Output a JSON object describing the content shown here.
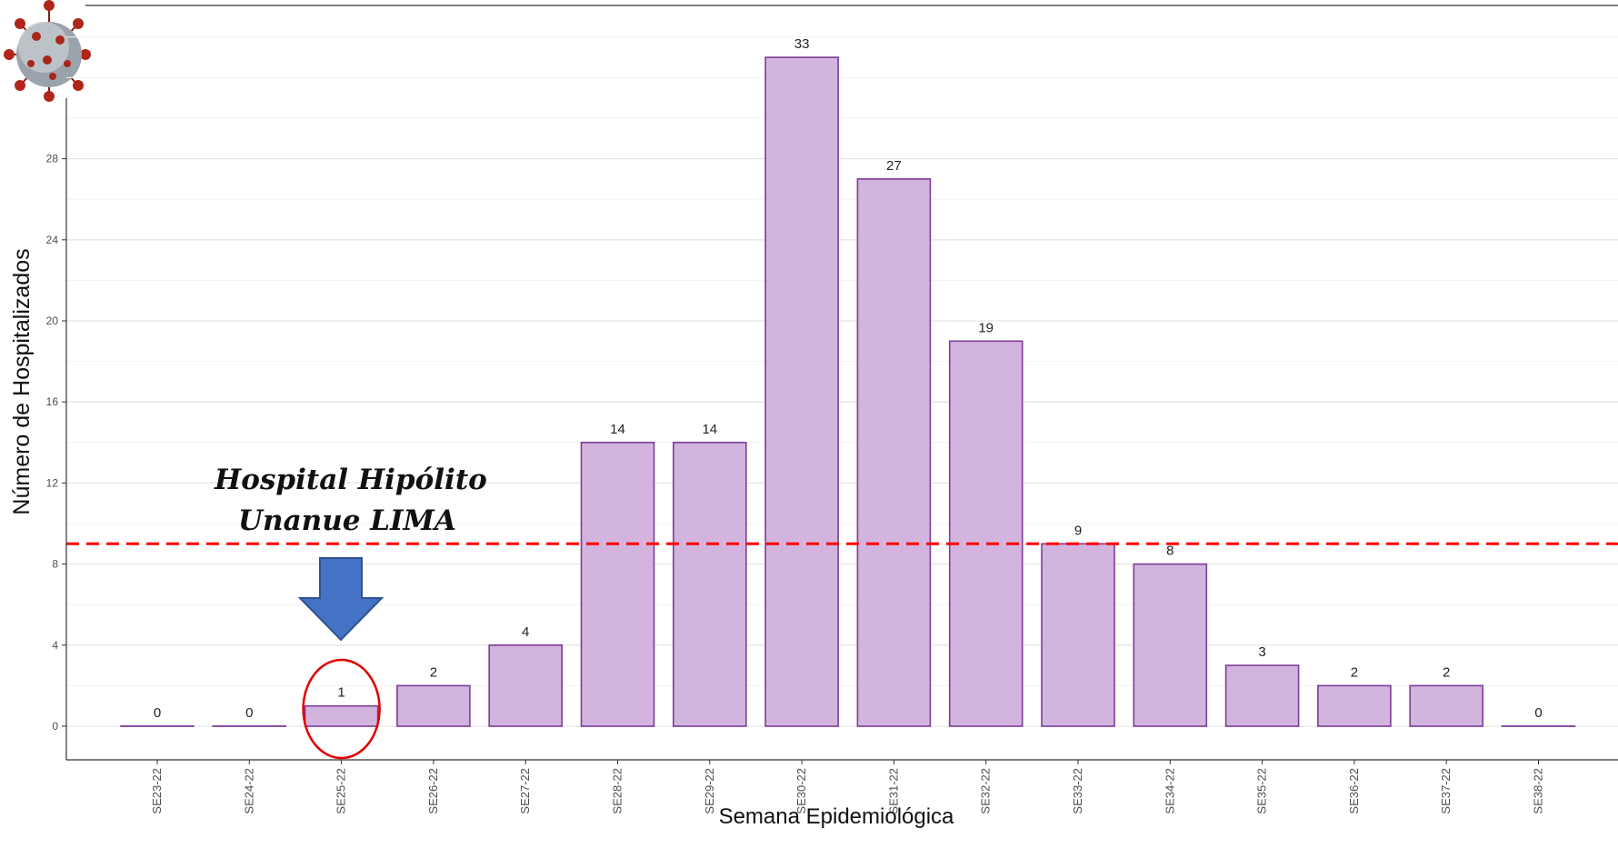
{
  "chart_data": {
    "type": "bar",
    "categories": [
      "SE23-22",
      "SE24-22",
      "SE25-22",
      "SE26-22",
      "SE27-22",
      "SE28-22",
      "SE29-22",
      "SE30-22",
      "SE31-22",
      "SE32-22",
      "SE33-22",
      "SE34-22",
      "SE35-22",
      "SE36-22",
      "SE37-22",
      "SE38-22"
    ],
    "values": [
      0,
      0,
      1,
      2,
      4,
      14,
      14,
      33,
      27,
      19,
      9,
      8,
      3,
      2,
      2,
      0
    ],
    "title": "",
    "xlabel": "Semana Epidemiológica",
    "ylabel": "Número de Hospitalizados",
    "ylim": [
      -1.7,
      35.2
    ],
    "yticks": [
      0,
      4,
      8,
      12,
      16,
      20,
      24,
      28
    ],
    "grid": true,
    "reference_line": {
      "y": 9,
      "style": "dashed",
      "color": "#ff0000"
    },
    "annotation": {
      "lines": [
        "Hospital Hipólito",
        "Unanue LIMA"
      ],
      "highlight_category": "SE25-22"
    },
    "colors": {
      "bar_fill": "#d2b4de",
      "bar_stroke": "#7d3c98",
      "arrow": "#4472c4",
      "circle": "#e00000",
      "ref_line": "#ff0000"
    }
  }
}
